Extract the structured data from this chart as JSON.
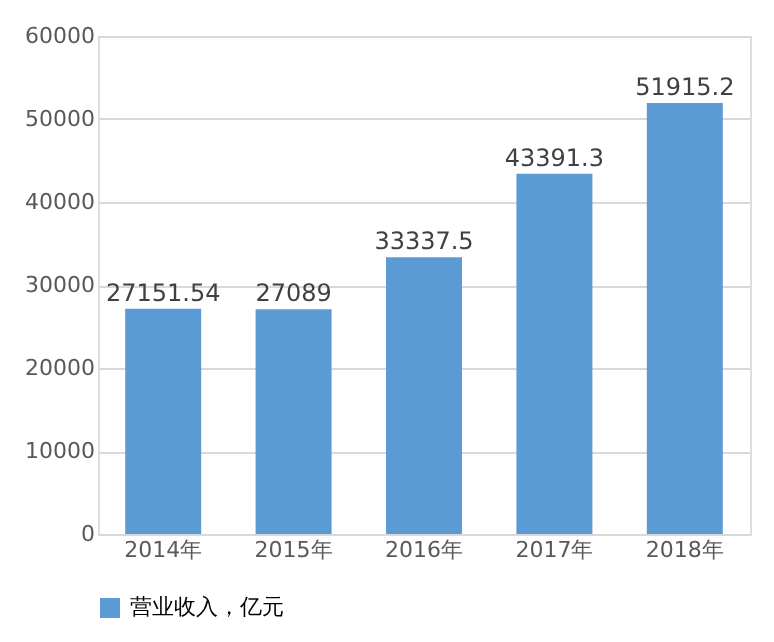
{
  "chart_data": {
    "type": "bar",
    "categories": [
      "2014年",
      "2015年",
      "2016年",
      "2017年",
      "2018年"
    ],
    "series": [
      {
        "name": "营业收入，亿元",
        "color": "#5b9bd5",
        "values": [
          27151.54,
          27089,
          33337.5,
          43391.3,
          51915.2
        ]
      }
    ],
    "ylim": [
      0,
      60000
    ],
    "yticks": [
      0,
      10000,
      20000,
      30000,
      40000,
      50000,
      60000
    ],
    "grid": "y",
    "legend": "bottom",
    "data_labels": true
  }
}
